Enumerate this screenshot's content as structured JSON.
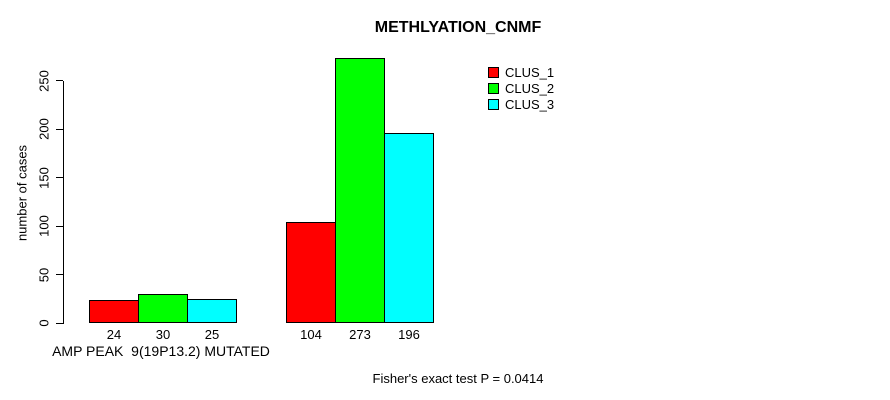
{
  "chart_data": {
    "type": "bar",
    "title": "METHLYATION_CNMF",
    "xlabel": "",
    "ylabel": "number of cases",
    "ylim": [
      0,
      250
    ],
    "yticks": [
      0,
      50,
      100,
      150,
      200,
      250
    ],
    "grid": false,
    "legend_position": "top-right",
    "series": [
      {
        "name": "CLUS_1",
        "color": "#ff0000"
      },
      {
        "name": "CLUS_2",
        "color": "#00ff00"
      },
      {
        "name": "CLUS_3",
        "color": "#00ffff"
      }
    ],
    "groups": [
      {
        "label": "AMP PEAK  9(19P13.2) MUTATED",
        "values": [
          24,
          30,
          25
        ]
      },
      {
        "label": "",
        "values": [
          104,
          273,
          196
        ]
      }
    ],
    "bar_value_labels": [
      24,
      30,
      25,
      104,
      273,
      196
    ],
    "annotation": "Fisher's exact test P = 0.0414"
  }
}
